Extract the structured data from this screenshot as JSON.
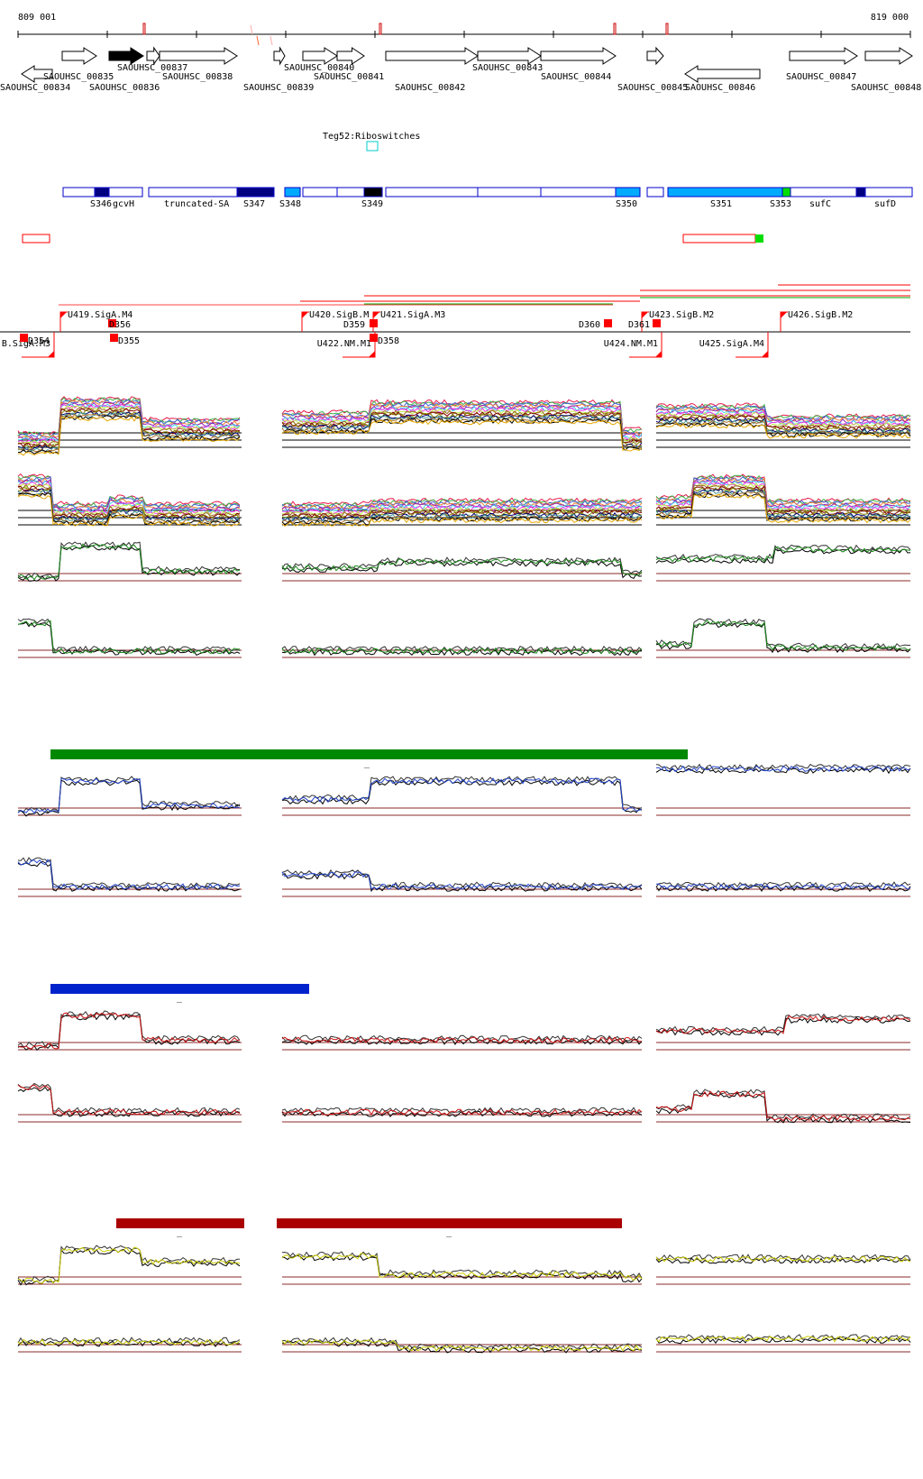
{
  "coordinates": {
    "start": "809 001",
    "end": "819 000"
  },
  "genes": [
    {
      "name": "SAOUHSC_00834",
      "strand": "-"
    },
    {
      "name": "SAOUHSC_00835",
      "strand": "+"
    },
    {
      "name": "SAOUHSC_00836",
      "strand": "+",
      "filled": true
    },
    {
      "name": "SAOUHSC_00837",
      "strand": "+"
    },
    {
      "name": "SAOUHSC_00838",
      "strand": "+"
    },
    {
      "name": "SAOUHSC_00839",
      "strand": "+"
    },
    {
      "name": "SAOUHSC_00840",
      "strand": "+"
    },
    {
      "name": "SAOUHSC_00841",
      "strand": "+"
    },
    {
      "name": "SAOUHSC_00842",
      "strand": "+"
    },
    {
      "name": "SAOUHSC_00843",
      "strand": "+"
    },
    {
      "name": "SAOUHSC_00844",
      "strand": "+"
    },
    {
      "name": "SAOUHSC_00845",
      "strand": "+"
    },
    {
      "name": "SAOUHSC_00846",
      "strand": "-"
    },
    {
      "name": "SAOUHSC_00847",
      "strand": "+"
    },
    {
      "name": "SAOUHSC_00848",
      "strand": "+"
    }
  ],
  "riboswitch": {
    "label": "Teg52:Riboswitches"
  },
  "segments": [
    "S346",
    "gcvH",
    "truncated-SA",
    "S347",
    "S348",
    "S349",
    "S350",
    "S351",
    "S353",
    "sufC",
    "sufD"
  ],
  "promoters": [
    "U419.SigA.M4",
    "U420.SigB.M",
    "U421.SigA.M3",
    "U423.SigB.M2",
    "U426.SigB.M2",
    "U422.NM.M1",
    "U424.NM.M1",
    "U425.SigA.M4",
    "B.SigA.M3"
  ],
  "terminators": [
    "D354",
    "D355",
    "D356",
    "D358",
    "D359",
    "D360",
    "D361"
  ],
  "bar_dash": "_",
  "colors": {
    "gene_outline": "#000000",
    "segment_outline": "#0000cc",
    "segment_dark": "#000080",
    "segment_light": "#00aaff",
    "segment_green": "#00dd00",
    "feature_red": "#ff0000",
    "bar_green": "#008800",
    "bar_blue": "#0022cc",
    "bar_red": "#aa0000",
    "trace_green": "#1a8a1a",
    "trace_blue": "#2244cc",
    "trace_red": "#cc1111",
    "trace_yellow": "#cccc00",
    "baseline": "#8b2a2a"
  }
}
